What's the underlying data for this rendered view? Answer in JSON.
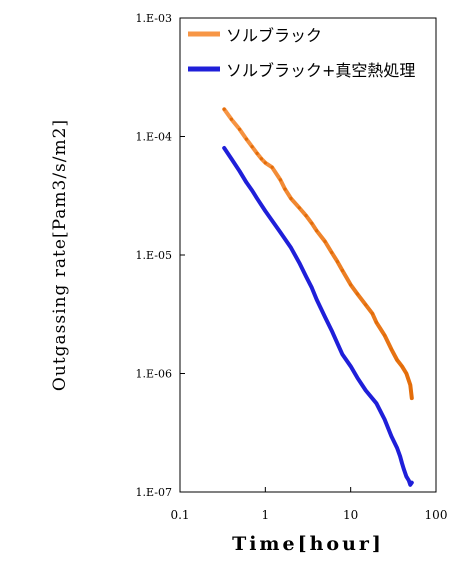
{
  "chart_data": {
    "type": "line",
    "title": "",
    "xlabel": "Time[hour]",
    "ylabel": "Outgassing rate[Pam3/s/m2]",
    "xscale": "log",
    "yscale": "log",
    "xlim": [
      0.1,
      100
    ],
    "ylim": [
      1e-07,
      0.001
    ],
    "x_ticks": [
      0.1,
      1,
      10,
      100
    ],
    "x_tick_labels": [
      "0.1",
      "1",
      "10",
      "100"
    ],
    "y_ticks": [
      0.001,
      0.0001,
      1e-05,
      1e-06,
      1e-07
    ],
    "y_tick_labels": [
      "1.E-03",
      "1.E-04",
      "1.E-05",
      "1.E-06",
      "1.E-07"
    ],
    "grid": false,
    "legend_position": "top-right",
    "series": [
      {
        "name": "ソルブラック",
        "color": "#F79646",
        "color_end": "#E36C09",
        "x": [
          0.33,
          0.4,
          0.5,
          0.6,
          0.7,
          0.8,
          0.9,
          1.0,
          1.2,
          1.5,
          1.7,
          2.0,
          2.5,
          3.0,
          3.5,
          4.0,
          5.0,
          6.0,
          7.0,
          8.0,
          10.0,
          12.0,
          15.0,
          18.0,
          20.0,
          25.0,
          30.0,
          35.0,
          40.0,
          45.0,
          50.0,
          52.0
        ],
        "y": [
          0.00017,
          0.00014,
          0.000115,
          9.5e-05,
          8.2e-05,
          7.2e-05,
          6.5e-05,
          6e-05,
          5.5e-05,
          4.3e-05,
          3.6e-05,
          3e-05,
          2.5e-05,
          2.15e-05,
          1.85e-05,
          1.6e-05,
          1.3e-05,
          1.05e-05,
          8.8e-06,
          7.4e-06,
          5.6e-06,
          4.7e-06,
          3.8e-06,
          3.2e-06,
          2.7e-06,
          2.1e-06,
          1.6e-06,
          1.3e-06,
          1.15e-06,
          1e-06,
          8e-07,
          6.2e-07
        ]
      },
      {
        "name": "ソルブラック+真空熱処理",
        "color": "#1F1FD9",
        "x": [
          0.33,
          0.4,
          0.5,
          0.6,
          0.7,
          0.8,
          1.0,
          1.2,
          1.5,
          2.0,
          2.5,
          3.0,
          3.5,
          4.0,
          5.0,
          6.0,
          7.0,
          8.0,
          10.0,
          12.0,
          15.0,
          20.0,
          25.0,
          30.0,
          35.0,
          38.0,
          40.0,
          42.0,
          45.0,
          48.0,
          50.0,
          52.0
        ],
        "y": [
          8e-05,
          6.5e-05,
          5.1e-05,
          4.1e-05,
          3.5e-05,
          3e-05,
          2.35e-05,
          1.95e-05,
          1.55e-05,
          1.15e-05,
          8.6e-06,
          6.6e-06,
          5.3e-06,
          4.2e-06,
          3e-06,
          2.3e-06,
          1.8e-06,
          1.45e-06,
          1.15e-06,
          9.2e-07,
          7.2e-07,
          5.6e-07,
          4.1e-07,
          2.95e-07,
          2.35e-07,
          2e-07,
          1.75e-07,
          1.55e-07,
          1.35e-07,
          1.25e-07,
          1.15e-07,
          1.2e-07
        ]
      }
    ]
  }
}
